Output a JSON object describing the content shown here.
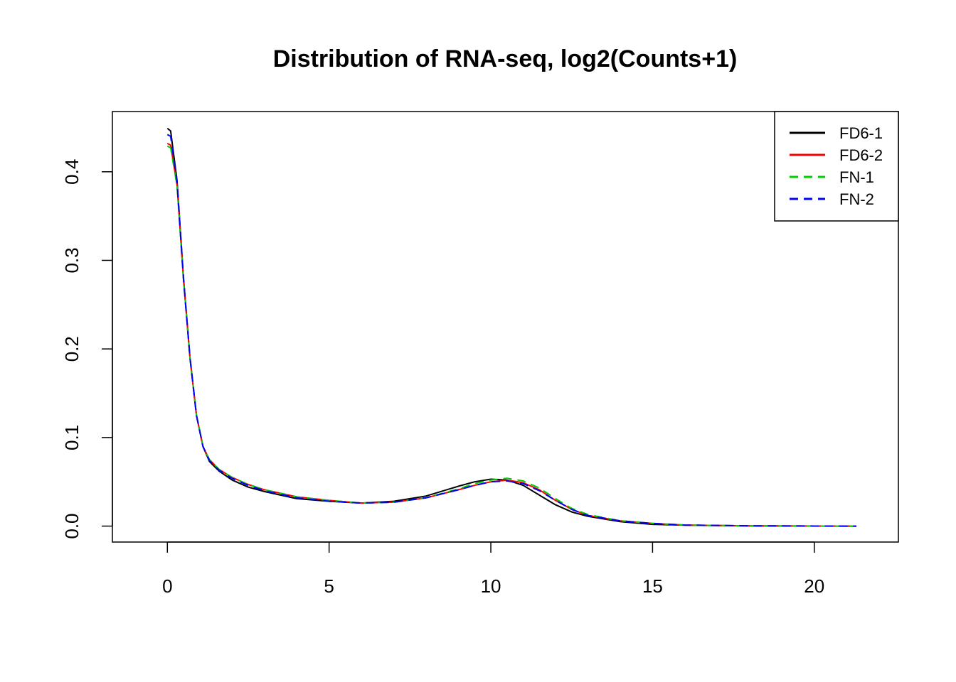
{
  "chart_data": {
    "type": "line",
    "title": "Distribution of RNA-seq, log2(Counts+1)",
    "xlabel": "",
    "ylabel": "",
    "xlim": [
      -1.7,
      22.6
    ],
    "ylim": [
      -0.018,
      0.468
    ],
    "x_ticks": [
      0,
      5,
      10,
      15,
      20
    ],
    "y_ticks": [
      0.0,
      0.1,
      0.2,
      0.3,
      0.4
    ],
    "x_tick_labels": [
      "0",
      "5",
      "10",
      "15",
      "20"
    ],
    "y_tick_labels": [
      "0.0",
      "0.1",
      "0.2",
      "0.3",
      "0.4"
    ],
    "grid": false,
    "legend_position": "top-right",
    "series": [
      {
        "name": "FD6-1",
        "color": "#000000",
        "dash": "solid",
        "points": [
          [
            0,
            0.449
          ],
          [
            0.1,
            0.446
          ],
          [
            0.3,
            0.39
          ],
          [
            0.5,
            0.28
          ],
          [
            0.7,
            0.19
          ],
          [
            0.9,
            0.125
          ],
          [
            1.1,
            0.09
          ],
          [
            1.3,
            0.073
          ],
          [
            1.6,
            0.062
          ],
          [
            2,
            0.052
          ],
          [
            2.5,
            0.044
          ],
          [
            3,
            0.039
          ],
          [
            4,
            0.031
          ],
          [
            5,
            0.028
          ],
          [
            6,
            0.026
          ],
          [
            7,
            0.028
          ],
          [
            8,
            0.034
          ],
          [
            9,
            0.045
          ],
          [
            9.5,
            0.05
          ],
          [
            10,
            0.053
          ],
          [
            10.5,
            0.052
          ],
          [
            11,
            0.046
          ],
          [
            11.5,
            0.035
          ],
          [
            12,
            0.024
          ],
          [
            12.5,
            0.016
          ],
          [
            13,
            0.011
          ],
          [
            14,
            0.005
          ],
          [
            15,
            0.002
          ],
          [
            16,
            0.001
          ],
          [
            18,
            0.0003
          ],
          [
            21.3,
            0
          ]
        ]
      },
      {
        "name": "FD6-2",
        "color": "#FF0000",
        "dash": "solid",
        "points": [
          [
            0,
            0.432
          ],
          [
            0.1,
            0.43
          ],
          [
            0.3,
            0.385
          ],
          [
            0.5,
            0.278
          ],
          [
            0.7,
            0.19
          ],
          [
            0.9,
            0.125
          ],
          [
            1.1,
            0.09
          ],
          [
            1.3,
            0.075
          ],
          [
            1.6,
            0.064
          ],
          [
            2,
            0.055
          ],
          [
            2.5,
            0.047
          ],
          [
            3,
            0.041
          ],
          [
            4,
            0.033
          ],
          [
            5,
            0.029
          ],
          [
            6,
            0.026
          ],
          [
            7,
            0.027
          ],
          [
            8,
            0.032
          ],
          [
            9,
            0.041
          ],
          [
            9.5,
            0.046
          ],
          [
            10,
            0.05
          ],
          [
            10.5,
            0.052
          ],
          [
            11,
            0.049
          ],
          [
            11.5,
            0.041
          ],
          [
            12,
            0.029
          ],
          [
            12.5,
            0.019
          ],
          [
            13,
            0.012
          ],
          [
            14,
            0.006
          ],
          [
            15,
            0.003
          ],
          [
            16,
            0.0012
          ],
          [
            18,
            0.0003
          ],
          [
            21.3,
            0
          ]
        ]
      },
      {
        "name": "FN-1",
        "color": "#00CC00",
        "dash": "dashed",
        "points": [
          [
            0,
            0.429
          ],
          [
            0.1,
            0.427
          ],
          [
            0.3,
            0.384
          ],
          [
            0.5,
            0.278
          ],
          [
            0.7,
            0.19
          ],
          [
            0.9,
            0.125
          ],
          [
            1.1,
            0.09
          ],
          [
            1.3,
            0.075
          ],
          [
            1.6,
            0.064
          ],
          [
            2,
            0.055
          ],
          [
            2.5,
            0.047
          ],
          [
            3,
            0.041
          ],
          [
            4,
            0.033
          ],
          [
            5,
            0.029
          ],
          [
            6,
            0.026
          ],
          [
            7,
            0.027
          ],
          [
            8,
            0.032
          ],
          [
            9,
            0.042
          ],
          [
            9.5,
            0.048
          ],
          [
            10,
            0.052
          ],
          [
            10.5,
            0.054
          ],
          [
            11,
            0.051
          ],
          [
            11.5,
            0.043
          ],
          [
            12,
            0.031
          ],
          [
            12.5,
            0.02
          ],
          [
            13,
            0.013
          ],
          [
            14,
            0.006
          ],
          [
            15,
            0.003
          ],
          [
            16,
            0.0012
          ],
          [
            18,
            0.0003
          ],
          [
            21.3,
            0
          ]
        ]
      },
      {
        "name": "FN-2",
        "color": "#0000FF",
        "dash": "dashed",
        "points": [
          [
            0,
            0.442
          ],
          [
            0.1,
            0.44
          ],
          [
            0.3,
            0.388
          ],
          [
            0.5,
            0.279
          ],
          [
            0.7,
            0.19
          ],
          [
            0.9,
            0.125
          ],
          [
            1.1,
            0.09
          ],
          [
            1.3,
            0.074
          ],
          [
            1.6,
            0.063
          ],
          [
            2,
            0.054
          ],
          [
            2.5,
            0.046
          ],
          [
            3,
            0.04
          ],
          [
            4,
            0.032
          ],
          [
            5,
            0.028
          ],
          [
            6,
            0.026
          ],
          [
            7,
            0.027
          ],
          [
            8,
            0.032
          ],
          [
            9,
            0.041
          ],
          [
            9.5,
            0.046
          ],
          [
            10,
            0.05
          ],
          [
            10.5,
            0.051
          ],
          [
            11,
            0.048
          ],
          [
            11.5,
            0.04
          ],
          [
            12,
            0.029
          ],
          [
            12.5,
            0.019
          ],
          [
            13,
            0.012
          ],
          [
            14,
            0.006
          ],
          [
            15,
            0.003
          ],
          [
            16,
            0.0012
          ],
          [
            18,
            0.0003
          ],
          [
            21.3,
            0
          ]
        ]
      }
    ]
  }
}
